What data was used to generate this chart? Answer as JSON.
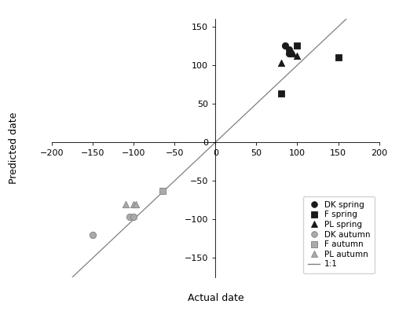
{
  "title": "",
  "xlabel": "Actual date",
  "ylabel": "Predicted date",
  "xlim": [
    -200,
    200
  ],
  "ylim": [
    -175,
    160
  ],
  "xticks": [
    -200,
    -150,
    -100,
    -50,
    0,
    50,
    100,
    150,
    200
  ],
  "yticks": [
    -150,
    -100,
    -50,
    0,
    50,
    100,
    150
  ],
  "line_color": "#808080",
  "series": {
    "DK_spring": {
      "marker": "o",
      "color": "#1a1a1a",
      "facecolor": "#1a1a1a",
      "size": 6,
      "points": [
        [
          85,
          125
        ],
        [
          90,
          120
        ],
        [
          90,
          115
        ]
      ]
    },
    "F_spring": {
      "marker": "s",
      "color": "#1a1a1a",
      "facecolor": "#1a1a1a",
      "size": 6,
      "points": [
        [
          100,
          125
        ],
        [
          80,
          63
        ],
        [
          150,
          110
        ]
      ]
    },
    "PL_spring": {
      "marker": "^",
      "color": "#1a1a1a",
      "facecolor": "#1a1a1a",
      "size": 6,
      "points": [
        [
          80,
          103
        ],
        [
          95,
          115
        ],
        [
          100,
          112
        ]
      ]
    },
    "DK_autumn": {
      "marker": "o",
      "color": "#808080",
      "facecolor": "#aaaaaa",
      "size": 6,
      "points": [
        [
          -150,
          -120
        ],
        [
          -105,
          -97
        ],
        [
          -100,
          -97
        ]
      ]
    },
    "F_autumn": {
      "marker": "s",
      "color": "#808080",
      "facecolor": "#aaaaaa",
      "size": 6,
      "points": [
        [
          -65,
          -63
        ]
      ]
    },
    "PL_autumn": {
      "marker": "^",
      "color": "#808080",
      "facecolor": "#aaaaaa",
      "size": 6,
      "points": [
        [
          -110,
          -80
        ],
        [
          -100,
          -80
        ],
        [
          -97,
          -80
        ]
      ]
    }
  },
  "legend_labels": [
    "DK spring",
    "F spring",
    "PL spring",
    "DK autumn",
    "F autumn",
    "PL autumn",
    "1:1"
  ],
  "legend_markers": [
    "o",
    "s",
    "^",
    "o",
    "s",
    "^",
    "-"
  ],
  "legend_colors_face": [
    "#1a1a1a",
    "#1a1a1a",
    "#1a1a1a",
    "#aaaaaa",
    "#aaaaaa",
    "#aaaaaa",
    "#808080"
  ],
  "legend_colors_edge": [
    "#1a1a1a",
    "#1a1a1a",
    "#1a1a1a",
    "#808080",
    "#808080",
    "#808080",
    "#808080"
  ]
}
